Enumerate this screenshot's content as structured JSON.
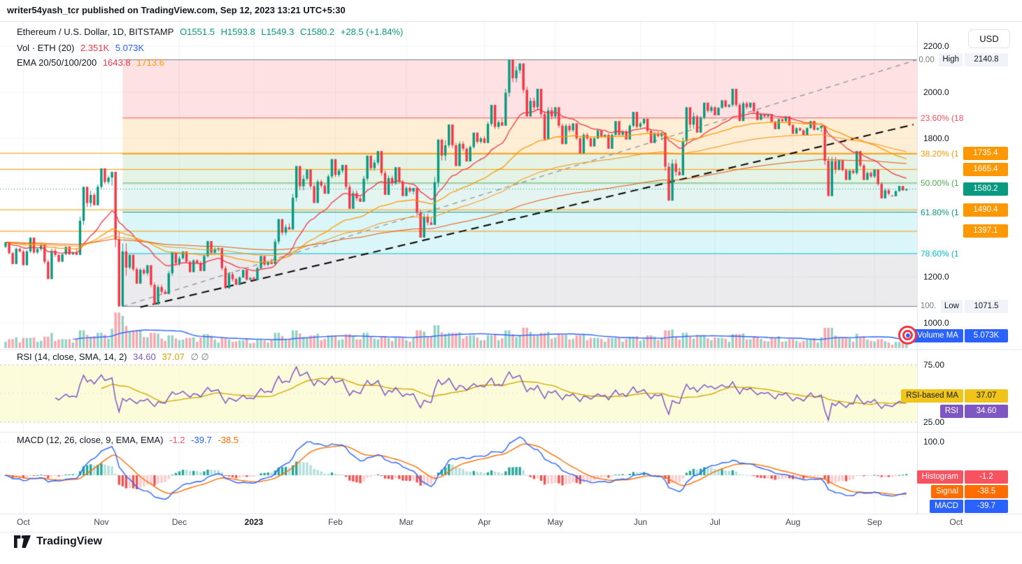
{
  "topbar": {
    "text": "writer54yash_tcr published on TradingView.com, Sep 12, 2023 13:21 UTC+5:30"
  },
  "toolbar": {
    "currency_label": "USD"
  },
  "colors": {
    "up": "#089981",
    "down": "#f23645",
    "volume": "#f23645",
    "volume_ma": "#2962ff",
    "ema20": "#f23645",
    "ema50": "#ff9800",
    "ema100": "#fb8c00",
    "ema200": "#e65100",
    "rsi": "#7e57c2",
    "rsi_ma": "#d4a800",
    "macd": "#2962ff",
    "signal": "#ff6d00",
    "hist_legend": "#f7525f",
    "hist_pos": "#26a69a",
    "hist_pos_weak": "#b2dfdb",
    "hist_neg": "#ef5350",
    "hist_neg_weak": "#fccbcd",
    "fib_line_extra": "#ff9800",
    "axis_text": "#131722",
    "muted_text": "#787b86"
  },
  "main_legend": {
    "title": "Ethereum / U.S. Dollar, 1D, BITSTAMP",
    "ohlc": [
      "O1551.5",
      "H1593.8",
      "L1549.3",
      "C1580.2"
    ],
    "change": "+28.5 (+1.84%)"
  },
  "volume_legend": {
    "label": "Vol · ETH (20)",
    "value": "2.351K",
    "ma_value": "5.073K"
  },
  "ema_legend": {
    "label": "EMA 20/50/100/200",
    "v1": "1643.8",
    "v2": "1713.6"
  },
  "rsi_pane": {
    "label": "RSI (14, close, SMA, 14, 2)",
    "rsi_value": "34.60",
    "ma_value": "37.07",
    "muted": "∅ ∅",
    "axis_ticks": [
      {
        "label": "75.00",
        "value": 75
      },
      {
        "label": "25.00",
        "value": 25
      }
    ],
    "badges": [
      {
        "label": "RSI-based MA",
        "value": "37.07",
        "color": "#f0c419",
        "text": "#131722"
      },
      {
        "label": "RSI",
        "value": "34.60",
        "color": "#7e57c2",
        "text": "#ffffff"
      }
    ]
  },
  "macd_pane": {
    "label": "MACD (12, 26, close, 9, EMA, EMA)",
    "hist_value": "-1.2",
    "macd_value": "-39.7",
    "signal_value": "-38.5",
    "axis_ticks": [
      {
        "label": "100.0",
        "value": 100
      }
    ],
    "badges": [
      {
        "label": "Histogram",
        "value": "-1.2",
        "color": "#f7525f",
        "text": "#ffffff"
      },
      {
        "label": "Signal",
        "value": "-38.5",
        "color": "#ff6d00",
        "text": "#ffffff"
      },
      {
        "label": "MACD",
        "value": "-39.7",
        "color": "#2962ff",
        "text": "#ffffff"
      }
    ]
  },
  "volume_badge": {
    "label": "Volume MA",
    "value": "5.073K",
    "color": "#2962ff",
    "text": "#ffffff"
  },
  "price_axis": {
    "ticks": [
      {
        "label": "2200.0",
        "price": 2200
      },
      {
        "label": "2000.0",
        "price": 2000
      },
      {
        "label": "1800.0",
        "price": 1800
      },
      {
        "label": "1200.0",
        "price": 1200
      },
      {
        "label": "1000.0",
        "price": 1000
      }
    ],
    "high_row": {
      "fib_label": "0.00",
      "tag": "High",
      "value": "2140.8"
    },
    "low_row": {
      "fib_label": "100.",
      "tag": "Low",
      "value": "1071.5"
    },
    "last_price": {
      "value": "1580.2",
      "price": 1580.2,
      "color": "#089981"
    },
    "line_labels": [
      {
        "value": "1735.4",
        "price": 1735.4
      },
      {
        "value": "1665.4",
        "price": 1665.4
      },
      {
        "value": "1490.4",
        "price": 1490.4
      },
      {
        "value": "1397.1",
        "price": 1397.1
      }
    ]
  },
  "fib": {
    "levels": [
      {
        "pct": 0,
        "label": "0.00",
        "price": 2140.8,
        "color": "#787b86"
      },
      {
        "pct": 23.6,
        "label": "23.60% (18",
        "price": 1888.4,
        "color": "#f7525f"
      },
      {
        "pct": 38.2,
        "label": "38.20% (1",
        "price": 1732.3,
        "color": "#ff9800"
      },
      {
        "pct": 50,
        "label": "50.00% (1",
        "price": 1606.2,
        "color": "#4caf50"
      },
      {
        "pct": 61.8,
        "label": "61.80% (1",
        "price": 1480.0,
        "color": "#089981"
      },
      {
        "pct": 78.6,
        "label": "78.60% (1",
        "price": 1300.3,
        "color": "#00bcd4"
      },
      {
        "pct": 100,
        "label": "100.",
        "price": 1071.5,
        "color": "#787b86"
      }
    ],
    "band_fills": [
      "rgba(242,54,69,0.15)",
      "rgba(255,152,0,0.16)",
      "rgba(76,175,80,0.15)",
      "rgba(8,153,129,0.11)",
      "rgba(0,188,212,0.14)",
      "rgba(120,123,134,0.15)"
    ]
  },
  "time_axis": {
    "labels": [
      {
        "text": "Oct",
        "day": 5
      },
      {
        "text": "Nov",
        "day": 27
      },
      {
        "text": "Dec",
        "day": 49
      },
      {
        "text": "2023",
        "day": 70,
        "bold": true
      },
      {
        "text": "Feb",
        "day": 93
      },
      {
        "text": "Mar",
        "day": 113
      },
      {
        "text": "Apr",
        "day": 135
      },
      {
        "text": "May",
        "day": 155
      },
      {
        "text": "Jun",
        "day": 179
      },
      {
        "text": "Jul",
        "day": 200
      },
      {
        "text": "Aug",
        "day": 222
      },
      {
        "text": "Sep",
        "day": 245
      },
      {
        "text": "Oct",
        "day": 268
      }
    ]
  },
  "footer": {
    "brand": "TradingView"
  },
  "chart_data": {
    "type": "candlestick",
    "title": "Ethereum / U.S. Dollar, 1D, BITSTAMP",
    "interval": "1D",
    "exchange": "BITSTAMP",
    "high": 2140.8,
    "low": 1071.5,
    "last_ohlc": {
      "o": 1551.5,
      "h": 1593.8,
      "l": 1549.3,
      "c": 1580.2,
      "change": "+28.5 (+1.84%)"
    },
    "price_axis_ticks": [
      2200,
      2000,
      1800,
      1200,
      1000
    ],
    "columns": [
      "open",
      "high",
      "low",
      "close",
      "volume_k"
    ],
    "weekly_ohlcv": [
      [
        1330,
        1350,
        1255,
        1310,
        3.5
      ],
      [
        1310,
        1370,
        1250,
        1320,
        4
      ],
      [
        1320,
        1340,
        1190,
        1295,
        4.5
      ],
      [
        1295,
        1330,
        1265,
        1305,
        3.5
      ],
      [
        1305,
        1590,
        1295,
        1555,
        7
      ],
      [
        1555,
        1670,
        1510,
        1630,
        6
      ],
      [
        1630,
        1655,
        1071.5,
        1240,
        14
      ],
      [
        1240,
        1295,
        1170,
        1215,
        7
      ],
      [
        1215,
        1250,
        1080,
        1135,
        6
      ],
      [
        1135,
        1305,
        1125,
        1280,
        5
      ],
      [
        1280,
        1310,
        1220,
        1260,
        4
      ],
      [
        1260,
        1355,
        1225,
        1320,
        5.5
      ],
      [
        1320,
        1325,
        1150,
        1190,
        4
      ],
      [
        1190,
        1230,
        1165,
        1195,
        3
      ],
      [
        1195,
        1290,
        1185,
        1265,
        3.5
      ],
      [
        1265,
        1450,
        1255,
        1415,
        6
      ],
      [
        1415,
        1680,
        1405,
        1625,
        7
      ],
      [
        1625,
        1665,
        1520,
        1595,
        5
      ],
      [
        1595,
        1710,
        1560,
        1660,
        5
      ],
      [
        1660,
        1685,
        1495,
        1540,
        5.5
      ],
      [
        1540,
        1725,
        1525,
        1695,
        6
      ],
      [
        1695,
        1745,
        1555,
        1605,
        4.5
      ],
      [
        1605,
        1675,
        1550,
        1570,
        4
      ],
      [
        1570,
        1585,
        1370,
        1435,
        7
      ],
      [
        1435,
        1795,
        1425,
        1770,
        9
      ],
      [
        1770,
        1860,
        1680,
        1755,
        6
      ],
      [
        1755,
        1825,
        1700,
        1800,
        5
      ],
      [
        1800,
        1945,
        1780,
        1870,
        5
      ],
      [
        1870,
        2140.8,
        1855,
        2095,
        7
      ],
      [
        2095,
        2125,
        1895,
        1935,
        8
      ],
      [
        1935,
        2015,
        1795,
        1895,
        6
      ],
      [
        1895,
        1935,
        1775,
        1835,
        5.5
      ],
      [
        1835,
        1865,
        1735,
        1800,
        5
      ],
      [
        1800,
        1835,
        1765,
        1815,
        4
      ],
      [
        1815,
        1875,
        1755,
        1830,
        4
      ],
      [
        1830,
        1915,
        1795,
        1865,
        4.5
      ],
      [
        1865,
        1885,
        1780,
        1810,
        5
      ],
      [
        1810,
        1825,
        1530,
        1655,
        7
      ],
      [
        1655,
        1935,
        1640,
        1895,
        6
      ],
      [
        1895,
        1955,
        1825,
        1935,
        5
      ],
      [
        1935,
        1965,
        1900,
        1945,
        4
      ],
      [
        1945,
        2015,
        1875,
        1935,
        5.5
      ],
      [
        1935,
        1955,
        1880,
        1895,
        4.5
      ],
      [
        1895,
        1905,
        1840,
        1875,
        4
      ],
      [
        1875,
        1895,
        1820,
        1835,
        3.5
      ],
      [
        1835,
        1875,
        1815,
        1845,
        3.5
      ],
      [
        1845,
        1855,
        1550,
        1665,
        8
      ],
      [
        1665,
        1705,
        1620,
        1650,
        4
      ],
      [
        1650,
        1745,
        1620,
        1635,
        4.5
      ],
      [
        1635,
        1665,
        1540,
        1560,
        3.5
      ],
      [
        1551.5,
        1593.8,
        1549.3,
        1580.2,
        2.4
      ]
    ],
    "trendlines": [
      {
        "style": "dashed-gray",
        "d1": 33,
        "p1": 1071.5,
        "d2": 257,
        "p2": 2140.8
      },
      {
        "style": "dashed-black",
        "d1": 38,
        "p1": 1068,
        "d2": 256,
        "p2": 1860
      }
    ],
    "horizontal_lines": [
      1735.4,
      1665.4,
      1490.4,
      1397.1
    ],
    "fib_retracement": {
      "from_price": 1071.5,
      "to_price": 2140.8,
      "levels_pct": [
        0,
        23.6,
        38.2,
        50,
        61.8,
        78.6,
        100
      ]
    },
    "indicators": {
      "volume": {
        "label": "Vol · ETH (20)",
        "current_k": 2.351,
        "ma_k": 5.073
      },
      "ema": {
        "label": "EMA 20/50/100/200",
        "periods": [
          20,
          50,
          100,
          200
        ],
        "values_shown": [
          1643.8,
          1713.6
        ]
      },
      "rsi": {
        "label": "RSI (14, close, SMA, 14, 2)",
        "period": 14,
        "value": 34.6,
        "ma_value": 37.07,
        "bands": [
          75,
          25
        ]
      },
      "macd": {
        "label": "MACD (12, 26, close, 9, EMA, EMA)",
        "fast": 12,
        "slow": 26,
        "signal_period": 9,
        "histogram": -1.2,
        "macd": -39.7,
        "signal": -38.5,
        "axis_tick": 100
      }
    }
  }
}
